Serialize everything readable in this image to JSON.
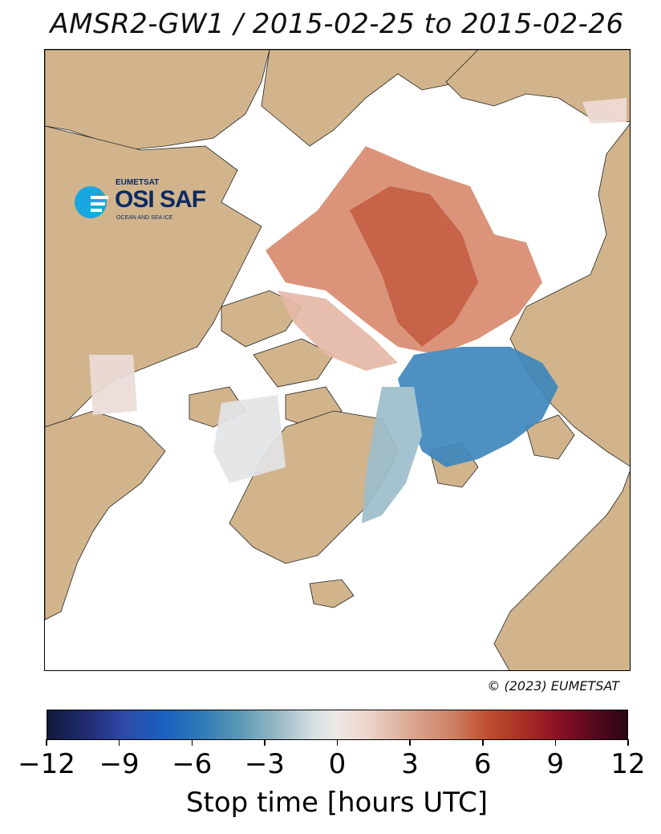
{
  "title": "AMSR2-GW1 / 2015-02-25 to 2015-02-26",
  "copyright": "© (2023) EUMETSAT",
  "logo": {
    "small_text": "EUMETSAT",
    "main_text": "OSI SAF",
    "sub_text": "OCEAN AND SEA ICE"
  },
  "colorbar": {
    "label": "Stop time [hours UTC]",
    "ticks": [
      "−12",
      "−9",
      "−6",
      "−3",
      "0",
      "3",
      "6",
      "9",
      "12"
    ],
    "range": [
      -12,
      12
    ]
  },
  "colors": {
    "land": "#d2b48c",
    "ocean": "#ffffff",
    "positive": "#c8603e",
    "negative": "#3a7fb5"
  }
}
